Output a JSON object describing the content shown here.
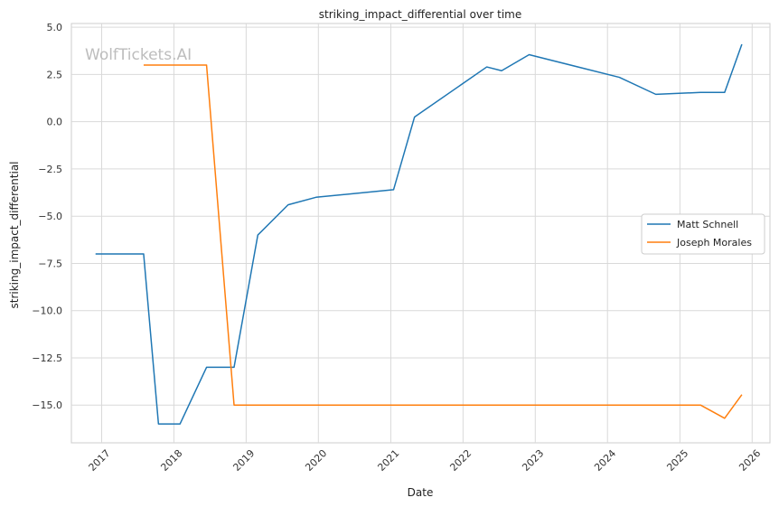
{
  "chart_data": {
    "type": "line",
    "title": "striking_impact_differential over time",
    "xlabel": "Date",
    "ylabel": "striking_impact_differential",
    "xlim": [
      "2016-08-01",
      "2026-04-01"
    ],
    "ylim": [
      -17.0,
      5.2
    ],
    "x_ticks": [
      "2017",
      "2018",
      "2019",
      "2020",
      "2021",
      "2022",
      "2023",
      "2024",
      "2025",
      "2026"
    ],
    "y_ticks": [
      "5.0",
      "2.5",
      "0.0",
      "−2.5",
      "−5.0",
      "−7.5",
      "−10.0",
      "−12.5",
      "−15.0"
    ],
    "grid": true,
    "legend_position": "center-right",
    "watermark": "WolfTickets.AI",
    "series": [
      {
        "name": "Matt Schnell",
        "color": "#1f77b4",
        "points": [
          [
            "2016-12-01",
            -7.0
          ],
          [
            "2017-08-01",
            -7.0
          ],
          [
            "2017-10-15",
            -16.0
          ],
          [
            "2018-02-01",
            -16.0
          ],
          [
            "2018-06-15",
            -13.0
          ],
          [
            "2018-11-01",
            -13.0
          ],
          [
            "2019-03-01",
            -6.0
          ],
          [
            "2019-08-01",
            -4.4
          ],
          [
            "2019-12-20",
            -4.0
          ],
          [
            "2021-01-15",
            -3.6
          ],
          [
            "2021-05-01",
            0.25
          ],
          [
            "2022-05-01",
            2.9
          ],
          [
            "2022-07-15",
            2.7
          ],
          [
            "2022-12-01",
            3.55
          ],
          [
            "2024-03-01",
            2.35
          ],
          [
            "2024-09-01",
            1.45
          ],
          [
            "2025-04-15",
            1.55
          ],
          [
            "2025-08-15",
            1.55
          ],
          [
            "2025-11-10",
            4.1
          ]
        ]
      },
      {
        "name": "Joseph Morales",
        "color": "#ff7f0e",
        "points": [
          [
            "2017-08-01",
            3.0
          ],
          [
            "2018-06-15",
            3.0
          ],
          [
            "2018-11-01",
            -15.0
          ],
          [
            "2025-04-15",
            -15.0
          ],
          [
            "2025-08-15",
            -15.7
          ],
          [
            "2025-11-10",
            -14.45
          ]
        ]
      }
    ]
  }
}
